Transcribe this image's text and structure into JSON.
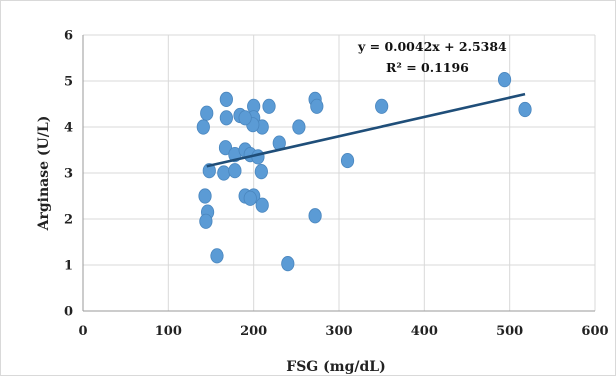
{
  "chart_data": {
    "type": "scatter",
    "xlabel": "FSG (mg/dL)",
    "ylabel": "Arginase (U/L)",
    "xlim": [
      0,
      600
    ],
    "ylim": [
      0,
      6
    ],
    "x_ticks": [
      0,
      100,
      200,
      300,
      400,
      500,
      600
    ],
    "y_ticks": [
      0,
      1,
      2,
      3,
      4,
      5,
      6
    ],
    "grid": true,
    "series": [
      {
        "points": [
          {
            "x": 168,
            "y": 4.6
          },
          {
            "x": 145,
            "y": 4.3
          },
          {
            "x": 141,
            "y": 4.0
          },
          {
            "x": 168,
            "y": 4.2
          },
          {
            "x": 184,
            "y": 4.25
          },
          {
            "x": 200,
            "y": 4.45
          },
          {
            "x": 218,
            "y": 4.45
          },
          {
            "x": 200,
            "y": 4.2
          },
          {
            "x": 210,
            "y": 4.0
          },
          {
            "x": 199,
            "y": 4.05
          },
          {
            "x": 190,
            "y": 4.2
          },
          {
            "x": 272,
            "y": 4.6
          },
          {
            "x": 274,
            "y": 4.45
          },
          {
            "x": 253,
            "y": 4.0
          },
          {
            "x": 350,
            "y": 4.45
          },
          {
            "x": 494,
            "y": 5.03
          },
          {
            "x": 518,
            "y": 4.38
          },
          {
            "x": 230,
            "y": 3.65
          },
          {
            "x": 167,
            "y": 3.55
          },
          {
            "x": 178,
            "y": 3.4
          },
          {
            "x": 190,
            "y": 3.5
          },
          {
            "x": 196,
            "y": 3.4
          },
          {
            "x": 205,
            "y": 3.35
          },
          {
            "x": 310,
            "y": 3.27
          },
          {
            "x": 148,
            "y": 3.05
          },
          {
            "x": 165,
            "y": 3.0
          },
          {
            "x": 178,
            "y": 3.05
          },
          {
            "x": 209,
            "y": 3.03
          },
          {
            "x": 143,
            "y": 2.5
          },
          {
            "x": 190,
            "y": 2.5
          },
          {
            "x": 200,
            "y": 2.5
          },
          {
            "x": 196,
            "y": 2.45
          },
          {
            "x": 210,
            "y": 2.3
          },
          {
            "x": 146,
            "y": 2.15
          },
          {
            "x": 144,
            "y": 1.95
          },
          {
            "x": 272,
            "y": 2.07
          },
          {
            "x": 157,
            "y": 1.2
          },
          {
            "x": 240,
            "y": 1.03
          }
        ]
      }
    ],
    "trendline": {
      "type": "linear",
      "slope": 0.0042,
      "intercept": 2.5384,
      "x_range": [
        145,
        518
      ]
    },
    "annotations": [
      "y = 0.0042x + 2.5384",
      "R² = 0.1196"
    ]
  }
}
